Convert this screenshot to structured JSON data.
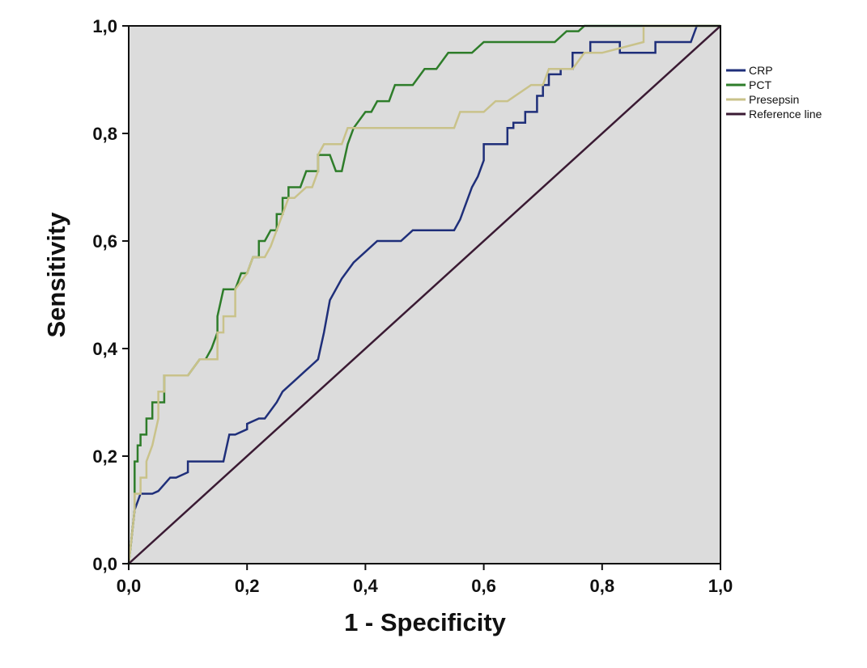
{
  "chart_data": {
    "type": "line",
    "title": "",
    "xlabel": "1 - Specificity",
    "ylabel": "Sensitivity",
    "xlim": [
      0,
      1
    ],
    "ylim": [
      0,
      1
    ],
    "xticks": [
      "0,0",
      "0,2",
      "0,4",
      "0,6",
      "0,8",
      "1,0"
    ],
    "yticks": [
      "0,0",
      "0,2",
      "0,4",
      "0,6",
      "0,8",
      "1,0"
    ],
    "grid": false,
    "legend_position": "right",
    "background_color": "#dcdcdc",
    "series": [
      {
        "name": "CRP",
        "color": "#1f2f7a",
        "x": [
          0,
          0.01,
          0.02,
          0.04,
          0.05,
          0.07,
          0.08,
          0.1,
          0.1,
          0.12,
          0.16,
          0.17,
          0.18,
          0.2,
          0.2,
          0.22,
          0.23,
          0.25,
          0.26,
          0.28,
          0.3,
          0.31,
          0.32,
          0.33,
          0.34,
          0.36,
          0.38,
          0.4,
          0.42,
          0.44,
          0.46,
          0.48,
          0.52,
          0.55,
          0.56,
          0.57,
          0.58,
          0.59,
          0.6,
          0.6,
          0.6,
          0.64,
          0.64,
          0.65,
          0.65,
          0.67,
          0.67,
          0.69,
          0.69,
          0.7,
          0.7,
          0.71,
          0.71,
          0.73,
          0.73,
          0.75,
          0.75,
          0.78,
          0.78,
          0.83,
          0.83,
          0.89,
          0.89,
          0.95,
          0.96,
          1.0
        ],
        "y": [
          0,
          0.1,
          0.13,
          0.13,
          0.135,
          0.16,
          0.16,
          0.17,
          0.19,
          0.19,
          0.19,
          0.24,
          0.24,
          0.25,
          0.26,
          0.27,
          0.27,
          0.3,
          0.32,
          0.34,
          0.36,
          0.37,
          0.38,
          0.43,
          0.49,
          0.53,
          0.56,
          0.58,
          0.6,
          0.6,
          0.6,
          0.62,
          0.62,
          0.62,
          0.64,
          0.67,
          0.7,
          0.72,
          0.75,
          0.78,
          0.78,
          0.78,
          0.81,
          0.81,
          0.82,
          0.82,
          0.84,
          0.84,
          0.87,
          0.87,
          0.89,
          0.89,
          0.91,
          0.91,
          0.92,
          0.92,
          0.95,
          0.95,
          0.97,
          0.97,
          0.95,
          0.95,
          0.97,
          0.97,
          1.0,
          1.0
        ]
      },
      {
        "name": "PCT",
        "color": "#2e7d2a",
        "x": [
          0,
          0.005,
          0.01,
          0.01,
          0.015,
          0.015,
          0.02,
          0.02,
          0.03,
          0.03,
          0.04,
          0.04,
          0.06,
          0.06,
          0.08,
          0.1,
          0.12,
          0.13,
          0.14,
          0.15,
          0.15,
          0.16,
          0.18,
          0.19,
          0.19,
          0.2,
          0.21,
          0.22,
          0.22,
          0.23,
          0.24,
          0.25,
          0.25,
          0.26,
          0.26,
          0.27,
          0.27,
          0.28,
          0.29,
          0.3,
          0.3,
          0.32,
          0.32,
          0.34,
          0.35,
          0.36,
          0.37,
          0.38,
          0.38,
          0.4,
          0.41,
          0.42,
          0.43,
          0.44,
          0.45,
          0.46,
          0.47,
          0.48,
          0.5,
          0.52,
          0.54,
          0.56,
          0.58,
          0.6,
          0.62,
          0.64,
          0.68,
          0.72,
          0.74,
          0.76,
          0.77,
          0.8,
          1.0
        ],
        "y": [
          0,
          0.05,
          0.1,
          0.19,
          0.19,
          0.22,
          0.22,
          0.24,
          0.24,
          0.27,
          0.27,
          0.3,
          0.3,
          0.35,
          0.35,
          0.35,
          0.38,
          0.38,
          0.4,
          0.43,
          0.46,
          0.51,
          0.51,
          0.54,
          0.54,
          0.54,
          0.57,
          0.57,
          0.6,
          0.6,
          0.62,
          0.62,
          0.65,
          0.65,
          0.68,
          0.68,
          0.7,
          0.7,
          0.7,
          0.73,
          0.73,
          0.73,
          0.76,
          0.76,
          0.73,
          0.73,
          0.78,
          0.81,
          0.81,
          0.84,
          0.84,
          0.86,
          0.86,
          0.86,
          0.89,
          0.89,
          0.89,
          0.89,
          0.92,
          0.92,
          0.95,
          0.95,
          0.95,
          0.97,
          0.97,
          0.97,
          0.97,
          0.97,
          0.99,
          0.99,
          1.0,
          1.0,
          1.0
        ]
      },
      {
        "name": "Presepsin",
        "color": "#c9c28a",
        "x": [
          0,
          0.005,
          0.01,
          0.01,
          0.015,
          0.02,
          0.02,
          0.03,
          0.03,
          0.04,
          0.05,
          0.05,
          0.06,
          0.06,
          0.07,
          0.08,
          0.1,
          0.12,
          0.14,
          0.15,
          0.15,
          0.16,
          0.16,
          0.18,
          0.18,
          0.2,
          0.21,
          0.22,
          0.23,
          0.24,
          0.25,
          0.26,
          0.26,
          0.27,
          0.27,
          0.28,
          0.3,
          0.31,
          0.32,
          0.32,
          0.33,
          0.34,
          0.36,
          0.37,
          0.38,
          0.4,
          0.42,
          0.45,
          0.5,
          0.53,
          0.55,
          0.56,
          0.58,
          0.6,
          0.62,
          0.64,
          0.68,
          0.7,
          0.71,
          0.73,
          0.75,
          0.77,
          0.78,
          0.8,
          0.87,
          0.87,
          1.0
        ],
        "y": [
          0,
          0.05,
          0.1,
          0.13,
          0.13,
          0.13,
          0.16,
          0.16,
          0.19,
          0.22,
          0.27,
          0.32,
          0.32,
          0.35,
          0.35,
          0.35,
          0.35,
          0.38,
          0.38,
          0.38,
          0.43,
          0.43,
          0.46,
          0.46,
          0.51,
          0.54,
          0.57,
          0.57,
          0.57,
          0.59,
          0.62,
          0.65,
          0.65,
          0.68,
          0.68,
          0.68,
          0.7,
          0.7,
          0.73,
          0.76,
          0.78,
          0.78,
          0.78,
          0.81,
          0.81,
          0.81,
          0.81,
          0.81,
          0.81,
          0.81,
          0.81,
          0.84,
          0.84,
          0.84,
          0.86,
          0.86,
          0.89,
          0.89,
          0.92,
          0.92,
          0.92,
          0.95,
          0.95,
          0.95,
          0.97,
          1.0,
          1.0
        ]
      },
      {
        "name": "Reference line",
        "color": "#3a1a33",
        "x": [
          0,
          1
        ],
        "y": [
          0,
          1
        ]
      }
    ]
  }
}
